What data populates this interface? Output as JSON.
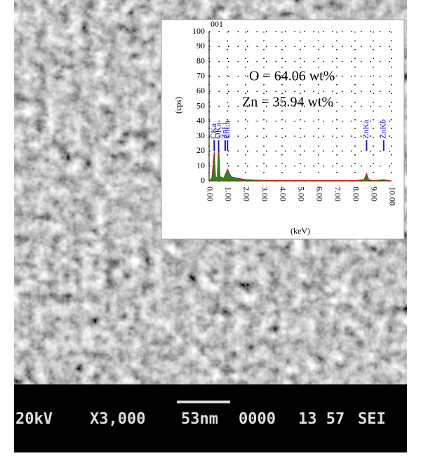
{
  "chart_data": {
    "type": "area",
    "label": "001",
    "xlabel": "(keV)",
    "ylabel": "(cps)",
    "annotations": [
      "O = 64.06 wt%",
      "Zn = 35.94 wt%"
    ],
    "x": [
      0,
      0.15,
      0.28,
      0.36,
      0.45,
      0.52,
      0.6,
      0.8,
      1.01,
      1.2,
      1.5,
      2,
      3,
      5,
      8,
      8.5,
      8.63,
      8.75,
      9,
      9.57,
      10
    ],
    "series": [
      {
        "color": "#1e8c1e",
        "values": [
          0,
          2,
          20,
          2,
          3,
          25,
          3,
          2,
          8,
          3,
          2,
          1,
          0.5,
          0.3,
          0.3,
          1,
          5,
          1,
          0.3,
          1,
          0
        ]
      }
    ],
    "peak_labels": [
      {
        "label": "CKa",
        "x": 0.28
      },
      {
        "label": "OKa",
        "x": 0.52
      },
      {
        "label": "ZnLl",
        "x": 0.88
      },
      {
        "label": "ZnLa",
        "x": 1.01
      },
      {
        "label": "ZnKa",
        "x": 8.63
      },
      {
        "label": "ZnKb",
        "x": 9.57
      }
    ],
    "xlim": [
      0,
      10
    ],
    "ylim": [
      0,
      100
    ],
    "xticks": [
      {
        "value": 0,
        "label": "0.00"
      },
      {
        "value": 1,
        "label": "1.00"
      },
      {
        "value": 2,
        "label": "2.00"
      },
      {
        "value": 3,
        "label": "3.00"
      },
      {
        "value": 4,
        "label": "4.00"
      },
      {
        "value": 5,
        "label": "5.00"
      },
      {
        "value": 6,
        "label": "6.00"
      },
      {
        "value": 7,
        "label": "7.00"
      },
      {
        "value": 8,
        "label": "8.00"
      },
      {
        "value": 9,
        "label": "9.00"
      },
      {
        "value": 10,
        "label": "10.00"
      }
    ],
    "yticks": [
      0,
      10,
      20,
      30,
      40,
      50,
      60,
      70,
      80,
      90,
      100
    ],
    "grid": true
  },
  "sem_bar": {
    "items": [
      "20kV",
      "X3,000",
      "53nm",
      "0000",
      "13 57",
      "SEI"
    ]
  }
}
